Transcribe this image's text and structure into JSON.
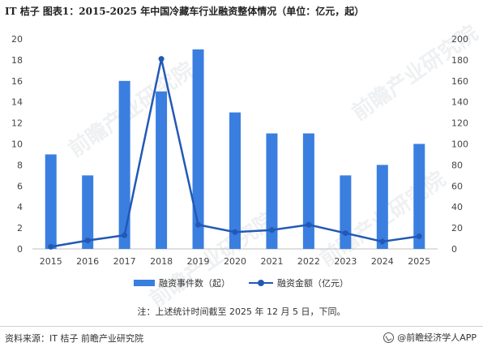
{
  "title": "IT 桔子  图表1：2015-2025 年中国冷藏车行业融资整体情况（单位：亿元，起）",
  "chart_data": {
    "type": "bar",
    "categories": [
      "2015",
      "2016",
      "2017",
      "2018",
      "2019",
      "2020",
      "2021",
      "2022",
      "2023",
      "2024",
      "2025"
    ],
    "series": [
      {
        "name": "融资事件数（起）",
        "type": "bar",
        "axis": "left",
        "values": [
          9,
          7,
          16,
          15,
          19,
          13,
          11,
          11,
          7,
          8,
          10
        ]
      },
      {
        "name": "融资金额（亿元）",
        "type": "line",
        "axis": "right",
        "values": [
          2,
          8,
          13,
          181,
          23,
          16,
          18,
          23,
          15,
          7,
          12
        ]
      }
    ],
    "ylim_left": [
      0,
      20
    ],
    "yticks_left": [
      "0",
      "2",
      "4",
      "6",
      "8",
      "10",
      "12",
      "14",
      "16",
      "18",
      "20"
    ],
    "ylim_right": [
      0,
      200
    ],
    "yticks_right": [
      "0",
      "20",
      "40",
      "60",
      "80",
      "100",
      "120",
      "140",
      "160",
      "180",
      "200"
    ],
    "grid": false,
    "legend_position": "bottom"
  },
  "colors": {
    "bar": "#3a7ee0",
    "line": "#2259b6"
  },
  "note": "注：上述统计时间截至 2025 年 12 月 5 日，下同。",
  "source": "资料来源：IT 桔子 前瞻产业研究院",
  "brand": "@前瞻经济学人APP",
  "watermark": "前瞻产业研究院"
}
